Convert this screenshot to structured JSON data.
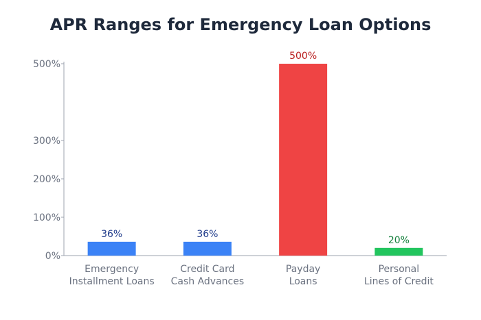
{
  "chart_data": {
    "type": "bar",
    "title": "APR Ranges for Emergency Loan Options",
    "xlabel": "",
    "ylabel": "",
    "categories": [
      [
        "Emergency",
        "Installment Loans"
      ],
      [
        "Credit Card",
        "Cash Advances"
      ],
      [
        "Payday",
        "Loans"
      ],
      [
        "Personal",
        "Lines of Credit"
      ]
    ],
    "values": [
      36,
      36,
      500,
      20
    ],
    "data_labels": [
      "36%",
      "36%",
      "500%",
      "20%"
    ],
    "bar_colors": [
      "#3b82f6",
      "#3b82f6",
      "#ef4444",
      "#22c55e"
    ],
    "label_colors": [
      "#1e3a8a",
      "#1e3a8a",
      "#b91c1c",
      "#15803d"
    ],
    "yticks": [
      0,
      100,
      200,
      300,
      500
    ],
    "ytick_labels": [
      "0%",
      "100%",
      "200%",
      "300%",
      "500%"
    ],
    "ylim": [
      0,
      500
    ],
    "grid": false,
    "legend": "none"
  }
}
